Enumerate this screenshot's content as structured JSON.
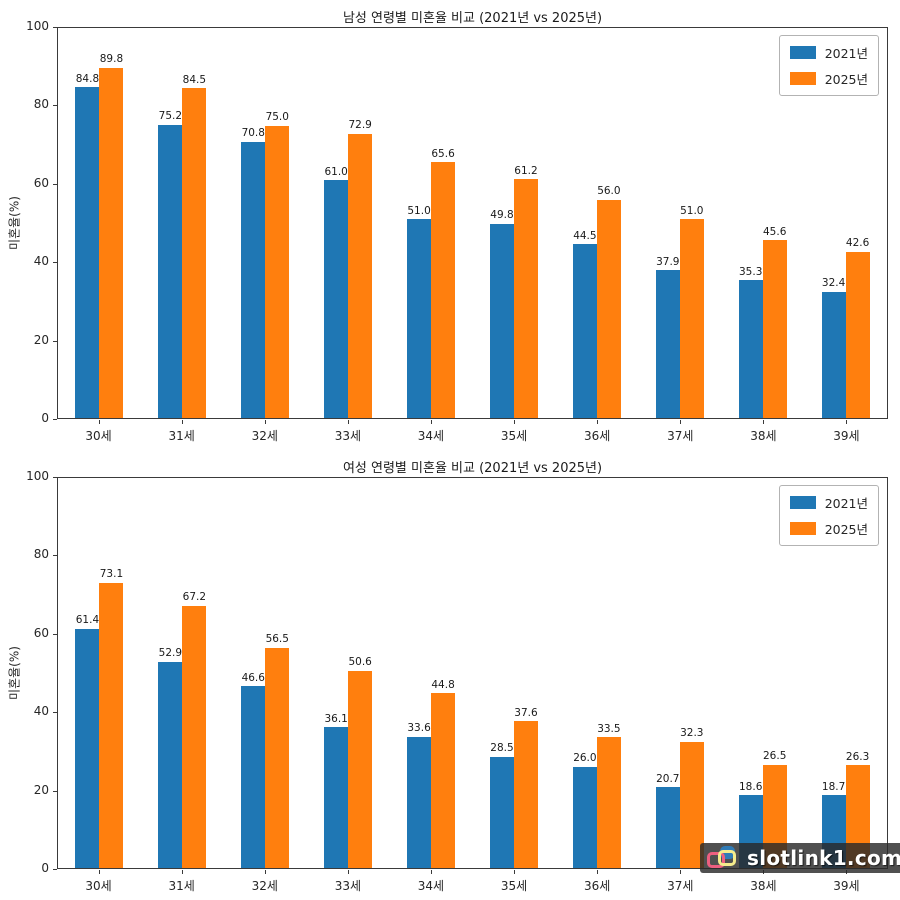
{
  "watermark": {
    "text": "slotlink1.com",
    "logo": "overlapping-squares-logo"
  },
  "chart_data": [
    {
      "type": "bar",
      "title": "남성 연령별 미혼율 비교 (2021년 vs 2025년)",
      "categories": [
        "30세",
        "31세",
        "32세",
        "33세",
        "34세",
        "35세",
        "36세",
        "37세",
        "38세",
        "39세"
      ],
      "series": [
        {
          "name": "2021년",
          "color": "#1f77b4",
          "values": [
            84.8,
            75.2,
            70.8,
            61.0,
            51.0,
            49.8,
            44.5,
            37.9,
            35.3,
            32.4
          ]
        },
        {
          "name": "2025년",
          "color": "#ff7f0e",
          "values": [
            89.8,
            84.5,
            75.0,
            72.9,
            65.6,
            61.2,
            56.0,
            51.0,
            45.6,
            42.6
          ]
        }
      ],
      "xlabel": "",
      "ylabel": "미혼율(%)",
      "ylim": [
        0,
        100
      ],
      "yticks": [
        0,
        20,
        40,
        60,
        80,
        100
      ],
      "grid": false,
      "legend_position": "upper right",
      "value_labels": true
    },
    {
      "type": "bar",
      "title": "여성 연령별 미혼율 비교 (2021년 vs 2025년)",
      "categories": [
        "30세",
        "31세",
        "32세",
        "33세",
        "34세",
        "35세",
        "36세",
        "37세",
        "38세",
        "39세"
      ],
      "series": [
        {
          "name": "2021년",
          "color": "#1f77b4",
          "values": [
            61.4,
            52.9,
            46.6,
            36.1,
            33.6,
            28.5,
            26.0,
            20.7,
            18.6,
            18.7
          ]
        },
        {
          "name": "2025년",
          "color": "#ff7f0e",
          "values": [
            73.1,
            67.2,
            56.5,
            50.6,
            44.8,
            37.6,
            33.5,
            32.3,
            26.5,
            26.3
          ]
        }
      ],
      "xlabel": "",
      "ylabel": "미혼율(%)",
      "ylim": [
        0,
        100
      ],
      "yticks": [
        0,
        20,
        40,
        60,
        80,
        100
      ],
      "grid": false,
      "legend_position": "upper right",
      "value_labels": true
    }
  ]
}
